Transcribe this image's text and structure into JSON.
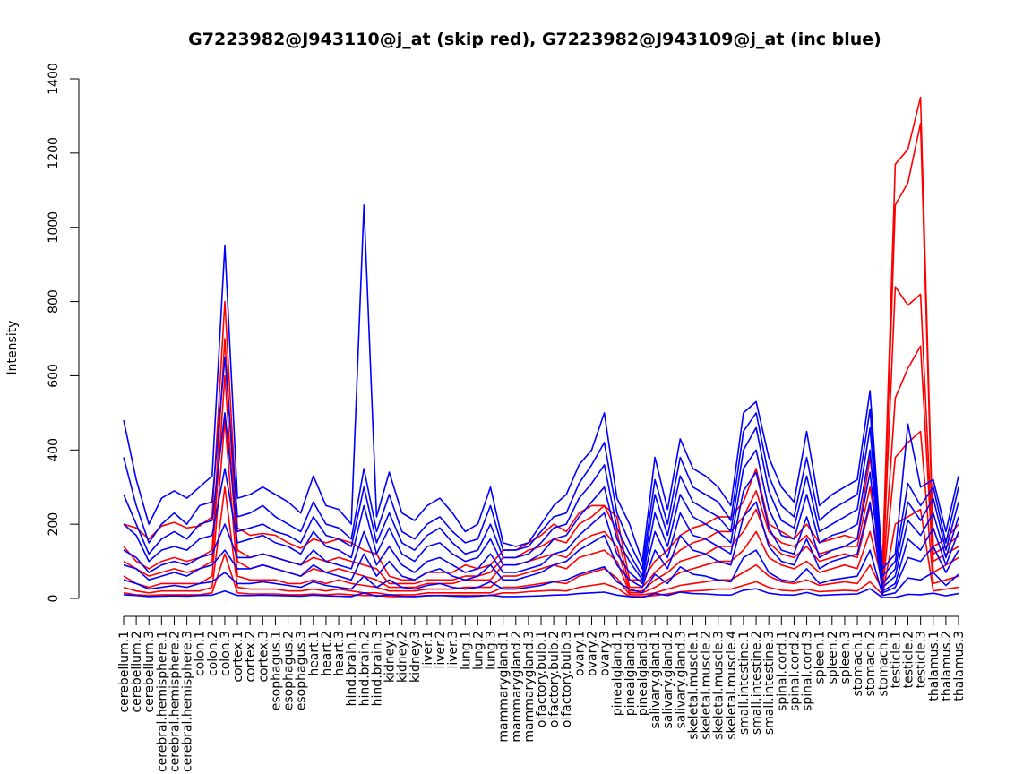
{
  "chart_data": {
    "type": "line",
    "title": "G7223982@J943110@j_at (skip red), G7223982@J943109@j_at (inc blue)",
    "xlabel": "",
    "ylabel": "Intensity",
    "ylim": [
      0,
      1400
    ],
    "yticks": [
      0,
      200,
      400,
      600,
      800,
      1000,
      1200,
      1400
    ],
    "grid": false,
    "legend": "none",
    "colors": {
      "red": "#ff0000",
      "blue": "#0000ff",
      "axis": "#000000"
    },
    "categories": [
      "cerebellum.1",
      "cerebellum.2",
      "cerebellum.3",
      "cerebral.hemisphere.1",
      "cerebral.hemisphere.2",
      "cerebral.hemisphere.3",
      "colon.1",
      "colon.2",
      "colon.3",
      "cortex.1",
      "cortex.2",
      "cortex.3",
      "esophagus.1",
      "esophagus.2",
      "esophagus.3",
      "heart.1",
      "heart.2",
      "heart.3",
      "hind.brain.1",
      "hind.brain.2",
      "hind.brain.3",
      "kidney.1",
      "kidney.2",
      "kidney.3",
      "liver.1",
      "liver.2",
      "liver.3",
      "lung.1",
      "lung.2",
      "lung.3",
      "mammarygland.1",
      "mammarygland.2",
      "mammarygland.3",
      "olfactory.bulb.1",
      "olfactory.bulb.2",
      "olfactory.bulb.3",
      "ovary.1",
      "ovary.2",
      "ovary.3",
      "pinealgland.1",
      "pinealgland.2",
      "pinealgland.3",
      "salivary.gland.1",
      "salivary.gland.2",
      "salivary.gland.3",
      "skeletal.muscle.1",
      "skeletal.muscle.2",
      "skeletal.muscle.3",
      "skeletal.muscle.4",
      "small.intestine.1",
      "small.intestine.2",
      "small.intestine.3",
      "spinal.cord.1",
      "spinal.cord.2",
      "spinal.cord.3",
      "spleen.1",
      "spleen.2",
      "spleen.3",
      "stomach.1",
      "stomach.2",
      "stomach.3",
      "testicle.1",
      "testicle.2",
      "testicle.3",
      "thalamus.1",
      "thalamus.2",
      "thalamus.3"
    ],
    "series": [
      {
        "color": "red",
        "values": [
          200,
          190,
          160,
          195,
          205,
          190,
          195,
          220,
          800,
          190,
          170,
          175,
          170,
          150,
          135,
          160,
          150,
          160,
          150,
          130,
          120,
          60,
          50,
          50,
          70,
          70,
          70,
          90,
          80,
          90,
          130,
          130,
          150,
          170,
          200,
          180,
          230,
          250,
          250,
          220,
          50,
          50,
          100,
          130,
          170,
          190,
          200,
          220,
          220,
          260,
          350,
          200,
          180,
          160,
          200,
          150,
          160,
          170,
          160,
          380,
          100,
          1170,
          1210,
          1350,
          140,
          160,
          200
        ]
      },
      {
        "color": "red",
        "values": [
          140,
          100,
          80,
          100,
          110,
          100,
          110,
          130,
          700,
          130,
          110,
          120,
          110,
          100,
          90,
          110,
          100,
          110,
          100,
          90,
          80,
          40,
          40,
          40,
          50,
          50,
          50,
          60,
          60,
          70,
          110,
          110,
          130,
          140,
          160,
          150,
          200,
          220,
          250,
          180,
          30,
          30,
          70,
          100,
          130,
          150,
          160,
          180,
          180,
          220,
          290,
          180,
          150,
          140,
          170,
          120,
          130,
          140,
          140,
          300,
          80,
          1060,
          1120,
          1280,
          120,
          140,
          170
        ]
      },
      {
        "color": "red",
        "values": [
          100,
          80,
          60,
          70,
          80,
          70,
          80,
          100,
          600,
          100,
          80,
          90,
          80,
          70,
          60,
          80,
          70,
          80,
          70,
          60,
          50,
          30,
          30,
          30,
          40,
          40,
          40,
          50,
          50,
          50,
          90,
          90,
          100,
          110,
          120,
          110,
          150,
          170,
          180,
          140,
          20,
          20,
          50,
          70,
          100,
          110,
          120,
          140,
          140,
          180,
          240,
          150,
          120,
          110,
          140,
          100,
          110,
          120,
          110,
          250,
          60,
          840,
          790,
          820,
          100,
          120,
          140
        ]
      },
      {
        "color": "red",
        "values": [
          60,
          40,
          30,
          40,
          40,
          40,
          40,
          60,
          480,
          60,
          50,
          50,
          50,
          40,
          40,
          50,
          40,
          50,
          40,
          35,
          30,
          20,
          20,
          20,
          25,
          25,
          25,
          30,
          30,
          30,
          60,
          60,
          70,
          80,
          90,
          80,
          110,
          120,
          130,
          100,
          15,
          15,
          30,
          50,
          70,
          80,
          90,
          100,
          100,
          130,
          180,
          110,
          90,
          80,
          100,
          70,
          80,
          90,
          80,
          180,
          40,
          540,
          620,
          680,
          70,
          90,
          110
        ]
      },
      {
        "color": "red",
        "values": [
          30,
          20,
          15,
          20,
          20,
          20,
          20,
          30,
          300,
          30,
          25,
          25,
          25,
          20,
          20,
          25,
          20,
          25,
          20,
          15,
          15,
          10,
          10,
          10,
          15,
          15,
          15,
          15,
          15,
          15,
          30,
          30,
          35,
          40,
          45,
          40,
          60,
          70,
          80,
          55,
          10,
          10,
          15,
          25,
          35,
          40,
          45,
          50,
          50,
          70,
          90,
          60,
          45,
          40,
          50,
          35,
          40,
          45,
          40,
          90,
          20,
          380,
          420,
          450,
          40,
          50,
          60
        ]
      },
      {
        "color": "red",
        "values": [
          15,
          10,
          8,
          10,
          10,
          10,
          10,
          15,
          120,
          15,
          12,
          12,
          12,
          10,
          10,
          12,
          10,
          12,
          10,
          8,
          8,
          5,
          5,
          5,
          8,
          8,
          8,
          8,
          8,
          8,
          15,
          15,
          18,
          20,
          22,
          20,
          30,
          35,
          40,
          28,
          5,
          5,
          8,
          12,
          18,
          20,
          22,
          25,
          25,
          35,
          45,
          30,
          22,
          20,
          25,
          18,
          20,
          22,
          20,
          45,
          10,
          200,
          220,
          240,
          20,
          25,
          30
        ]
      },
      {
        "color": "blue",
        "values": [
          480,
          320,
          200,
          270,
          290,
          270,
          300,
          330,
          950,
          270,
          280,
          300,
          280,
          260,
          230,
          330,
          250,
          240,
          200,
          1060,
          220,
          340,
          230,
          210,
          250,
          270,
          230,
          180,
          200,
          300,
          150,
          140,
          150,
          200,
          250,
          280,
          360,
          400,
          500,
          270,
          200,
          100,
          380,
          240,
          430,
          350,
          330,
          300,
          250,
          500,
          530,
          380,
          300,
          260,
          450,
          250,
          280,
          300,
          320,
          560,
          80,
          120,
          470,
          300,
          320,
          180,
          330
        ]
      },
      {
        "color": "blue",
        "values": [
          380,
          250,
          150,
          200,
          230,
          200,
          250,
          260,
          650,
          220,
          230,
          250,
          220,
          200,
          180,
          260,
          200,
          190,
          160,
          350,
          180,
          280,
          180,
          160,
          200,
          220,
          180,
          150,
          160,
          250,
          130,
          130,
          140,
          180,
          220,
          230,
          310,
          360,
          420,
          230,
          150,
          80,
          320,
          200,
          380,
          300,
          280,
          260,
          210,
          450,
          500,
          330,
          250,
          220,
          380,
          210,
          240,
          260,
          280,
          510,
          60,
          100,
          310,
          250,
          300,
          150,
          300
        ]
      },
      {
        "color": "blue",
        "values": [
          280,
          200,
          120,
          160,
          180,
          160,
          200,
          210,
          500,
          180,
          190,
          200,
          180,
          170,
          150,
          220,
          170,
          160,
          140,
          300,
          150,
          230,
          150,
          130,
          170,
          190,
          150,
          120,
          130,
          200,
          110,
          110,
          120,
          150,
          190,
          200,
          270,
          310,
          360,
          190,
          120,
          60,
          280,
          170,
          330,
          260,
          240,
          220,
          180,
          400,
          460,
          290,
          210,
          190,
          330,
          180,
          200,
          220,
          240,
          460,
          40,
          80,
          260,
          210,
          270,
          130,
          260
        ]
      },
      {
        "color": "blue",
        "values": [
          200,
          170,
          100,
          130,
          140,
          130,
          160,
          170,
          350,
          150,
          160,
          170,
          150,
          140,
          120,
          180,
          140,
          130,
          110,
          250,
          120,
          190,
          120,
          100,
          140,
          150,
          120,
          100,
          110,
          160,
          90,
          90,
          100,
          120,
          160,
          170,
          220,
          260,
          300,
          160,
          100,
          50,
          230,
          140,
          280,
          220,
          200,
          180,
          150,
          350,
          400,
          240,
          170,
          160,
          280,
          150,
          170,
          180,
          200,
          400,
          30,
          60,
          210,
          170,
          230,
          110,
          220
        ]
      },
      {
        "color": "blue",
        "values": [
          130,
          110,
          70,
          90,
          100,
          90,
          110,
          120,
          200,
          110,
          110,
          120,
          110,
          100,
          90,
          130,
          100,
          90,
          80,
          180,
          90,
          140,
          90,
          70,
          100,
          110,
          90,
          70,
          80,
          120,
          70,
          70,
          80,
          90,
          120,
          130,
          170,
          200,
          230,
          120,
          70,
          40,
          180,
          110,
          230,
          170,
          160,
          140,
          120,
          290,
          340,
          190,
          130,
          120,
          220,
          110,
          130,
          140,
          160,
          340,
          20,
          40,
          160,
          130,
          190,
          90,
          180
        ]
      },
      {
        "color": "blue",
        "values": [
          90,
          80,
          50,
          60,
          70,
          60,
          80,
          90,
          130,
          80,
          80,
          90,
          80,
          70,
          60,
          90,
          70,
          60,
          50,
          120,
          60,
          100,
          60,
          50,
          70,
          80,
          60,
          50,
          60,
          90,
          50,
          50,
          60,
          70,
          90,
          100,
          130,
          150,
          170,
          90,
          50,
          30,
          130,
          80,
          170,
          130,
          120,
          100,
          90,
          220,
          260,
          140,
          100,
          90,
          160,
          80,
          100,
          110,
          120,
          260,
          15,
          30,
          110,
          100,
          140,
          70,
          130
        ]
      },
      {
        "color": "blue",
        "values": [
          50,
          40,
          25,
          30,
          35,
          30,
          40,
          45,
          70,
          40,
          40,
          45,
          40,
          35,
          30,
          45,
          35,
          30,
          25,
          60,
          30,
          50,
          30,
          25,
          35,
          40,
          30,
          25,
          30,
          45,
          25,
          25,
          30,
          35,
          45,
          50,
          65,
          75,
          85,
          45,
          25,
          15,
          65,
          40,
          85,
          65,
          60,
          50,
          45,
          110,
          130,
          70,
          50,
          45,
          80,
          40,
          50,
          55,
          60,
          130,
          8,
          15,
          55,
          50,
          70,
          35,
          65
        ]
      },
      {
        "color": "blue",
        "values": [
          10,
          8,
          5,
          6,
          7,
          6,
          8,
          9,
          20,
          8,
          8,
          9,
          8,
          7,
          6,
          9,
          7,
          6,
          5,
          15,
          6,
          10,
          6,
          5,
          7,
          8,
          6,
          5,
          6,
          9,
          5,
          5,
          6,
          7,
          9,
          10,
          13,
          15,
          17,
          9,
          5,
          3,
          13,
          8,
          17,
          13,
          12,
          10,
          9,
          22,
          26,
          14,
          10,
          9,
          16,
          8,
          10,
          11,
          12,
          26,
          2,
          3,
          11,
          10,
          14,
          7,
          13
        ]
      }
    ]
  }
}
